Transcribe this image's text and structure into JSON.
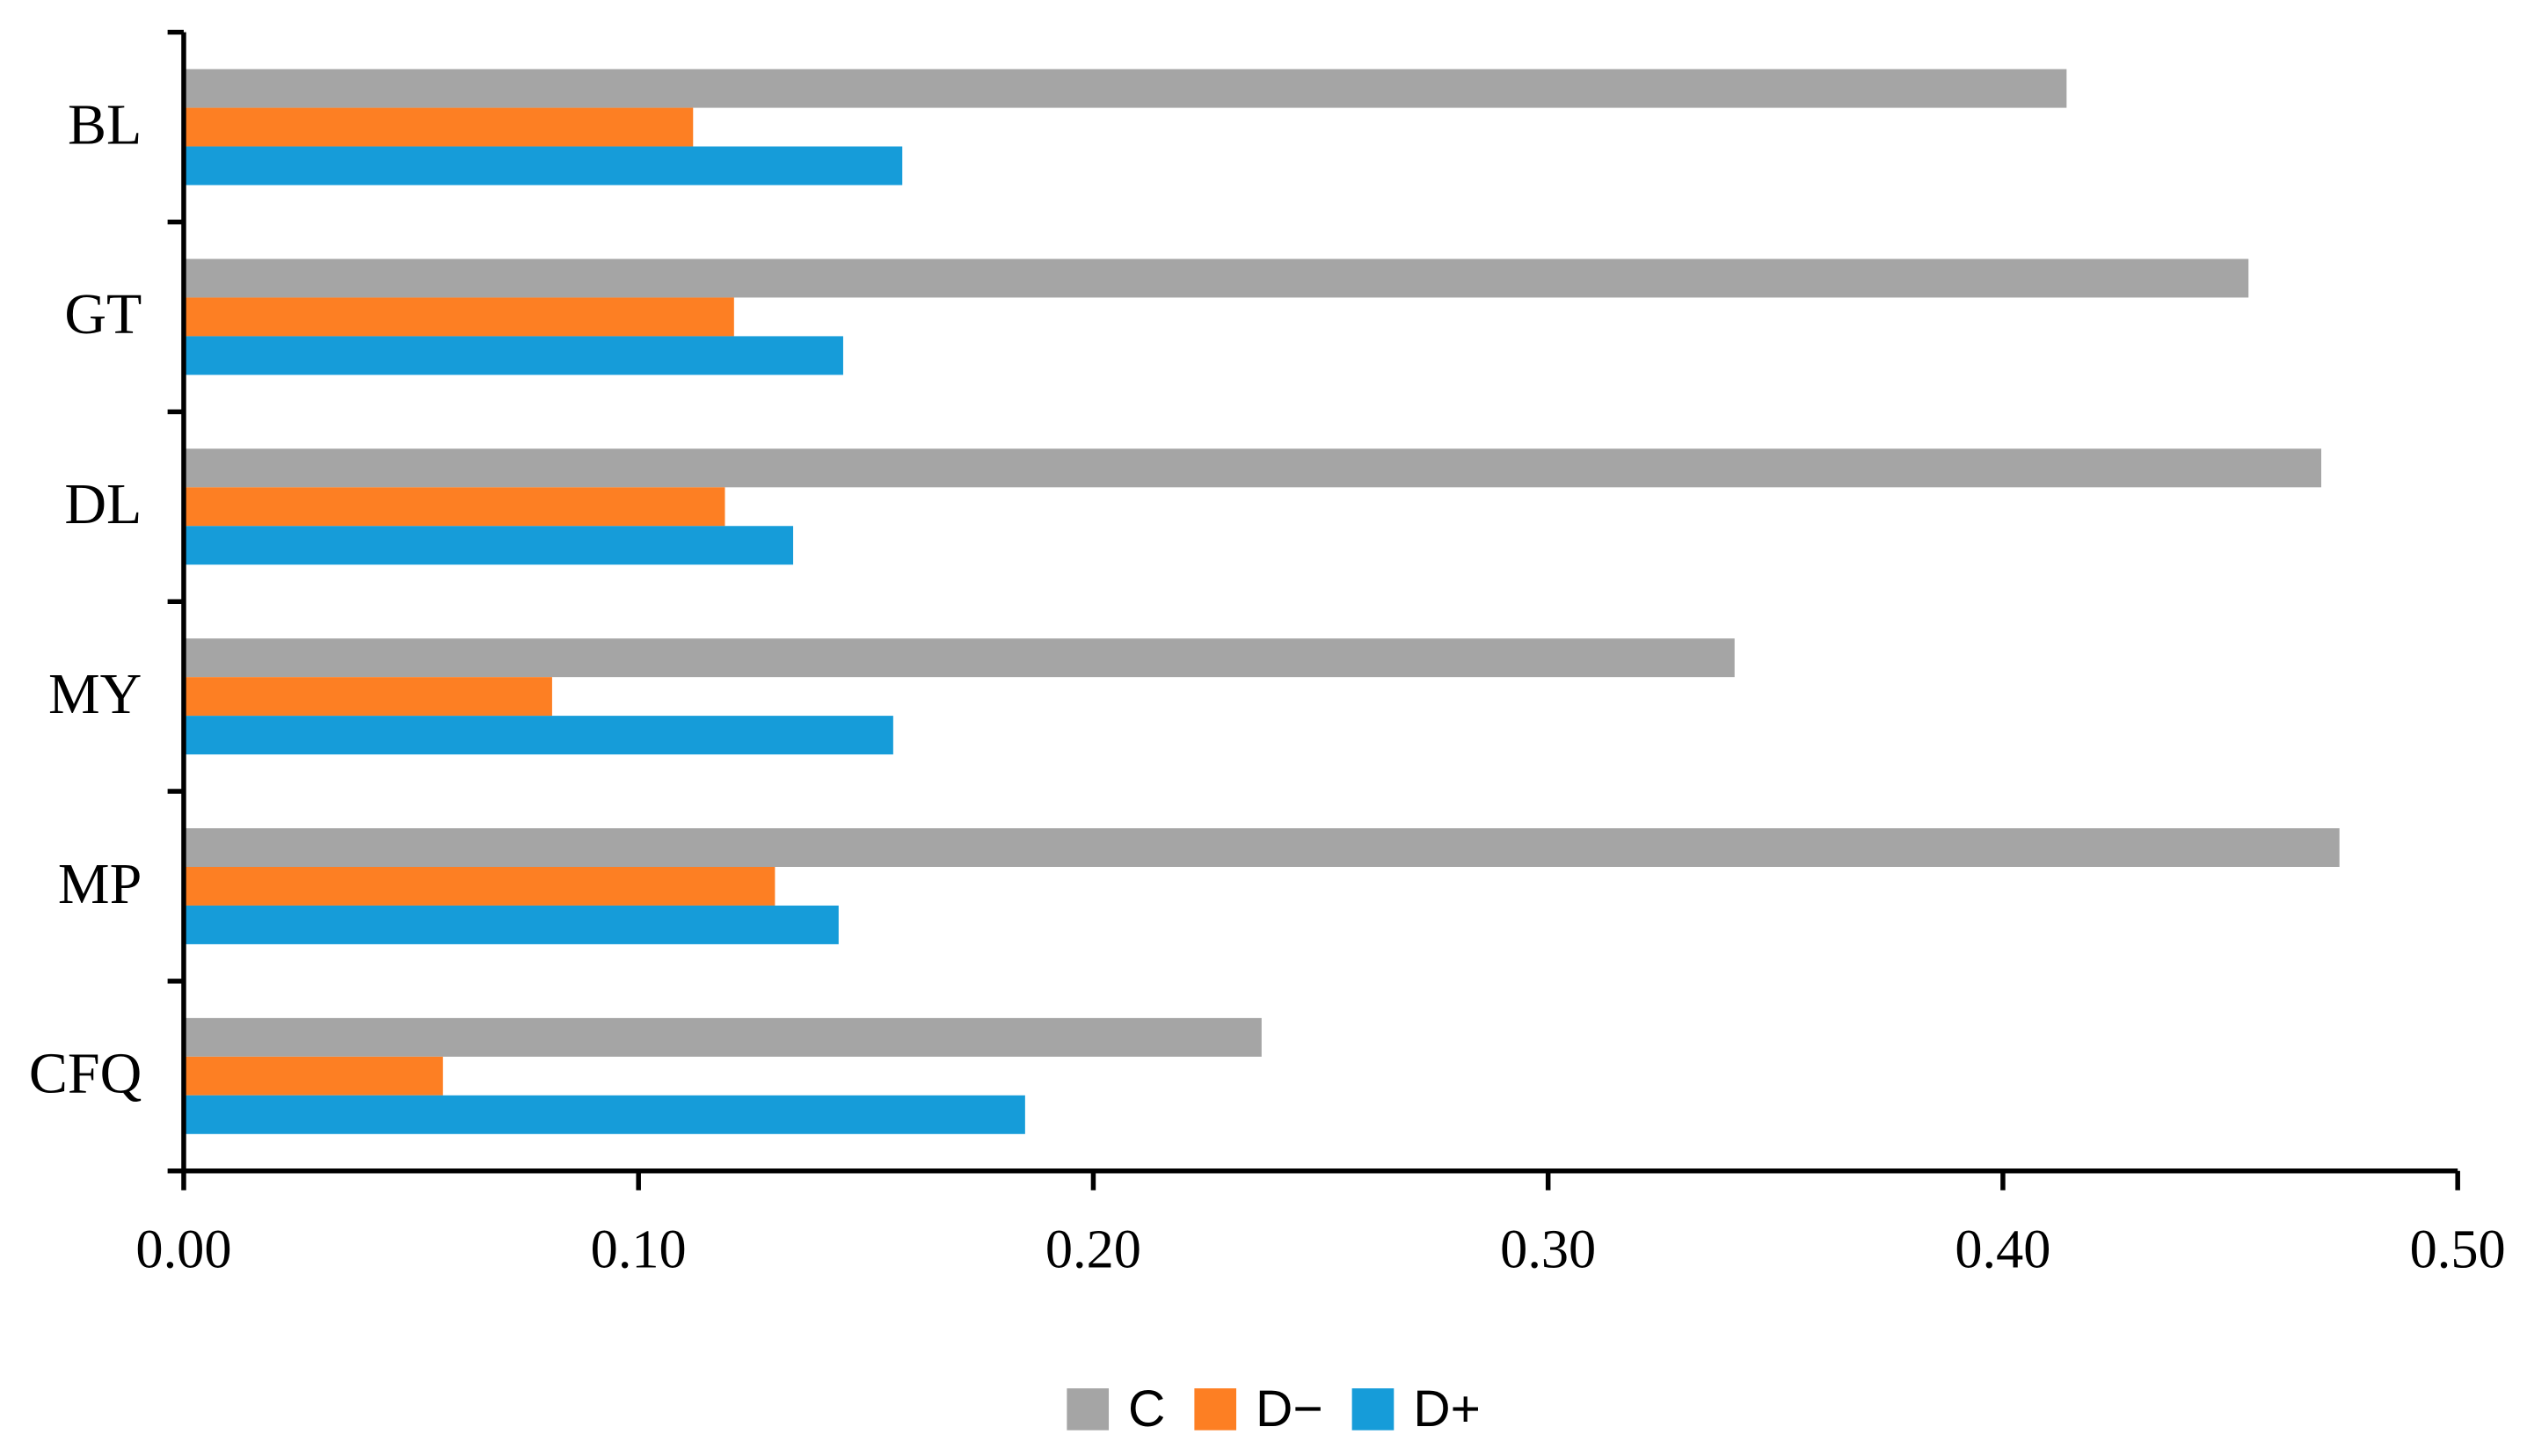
{
  "chart_data": {
    "type": "bar",
    "orientation": "horizontal",
    "categories": [
      "BL",
      "GT",
      "DL",
      "MY",
      "MP",
      "CFQ"
    ],
    "series": [
      {
        "name": "C",
        "color": "#a5a5a5",
        "values": [
          0.414,
          0.454,
          0.47,
          0.341,
          0.474,
          0.237
        ]
      },
      {
        "name": "D−",
        "color": "#fd7f23",
        "values": [
          0.112,
          0.121,
          0.119,
          0.081,
          0.13,
          0.057
        ]
      },
      {
        "name": "D+",
        "color": "#169cd9",
        "values": [
          0.158,
          0.145,
          0.134,
          0.156,
          0.144,
          0.185
        ]
      }
    ],
    "xlim": [
      0,
      0.5
    ],
    "xticks": [
      {
        "value": 0,
        "label": "0.00"
      },
      {
        "value": 0.1,
        "label": "0.10"
      },
      {
        "value": 0.2,
        "label": "0.20"
      },
      {
        "value": 0.3,
        "label": "0.30"
      },
      {
        "value": 0.4,
        "label": "0.40"
      },
      {
        "value": 0.5,
        "label": "0.50"
      }
    ],
    "legend": "bottom"
  }
}
